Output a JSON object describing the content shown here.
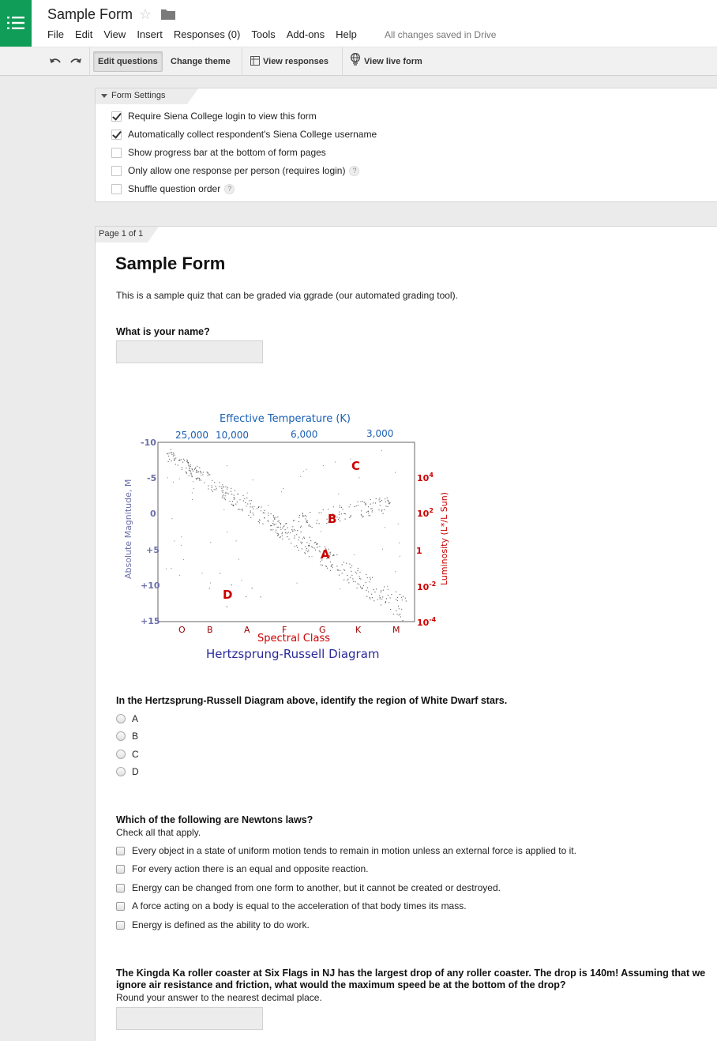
{
  "app": {
    "doc_title": "Sample Form",
    "save_status": "All changes saved in Drive",
    "menu": [
      "File",
      "Edit",
      "View",
      "Insert",
      "Responses (0)",
      "Tools",
      "Add-ons",
      "Help"
    ]
  },
  "toolbar": {
    "edit_questions": "Edit questions",
    "change_theme": "Change theme",
    "view_responses": "View responses",
    "view_live_form": "View live form"
  },
  "settings": {
    "tab_label": "Form Settings",
    "options": [
      {
        "label": "Require Siena College login to view this form",
        "checked": true
      },
      {
        "label": "Automatically collect respondent's Siena College username",
        "checked": true
      },
      {
        "label": "Show progress bar at the bottom of form pages",
        "checked": false
      },
      {
        "label": "Only allow one response per person (requires login)",
        "checked": false
      },
      {
        "label": "Shuffle question order",
        "checked": false
      }
    ],
    "help_glyph": "?"
  },
  "page": {
    "tab_label": "Page 1 of 1",
    "form_title": "Sample Form",
    "form_description": "This is a sample quiz that can be graded via ggrade (our automated grading tool).",
    "q1": {
      "title": "What is your name?"
    },
    "q2": {
      "title": "In the Hertzsprung-Russell Diagram above, identify the region of White Dwarf stars.",
      "options": [
        "A",
        "B",
        "C",
        "D"
      ]
    },
    "q3": {
      "title": "Which of the following are Newtons laws?",
      "help": "Check all that apply.",
      "options": [
        "Every object in a state of uniform motion tends to remain in motion unless an external force is applied to it.",
        "For every action there is an equal and opposite reaction.",
        "Energy can be changed from one form to another, but it cannot be created or destroyed.",
        "A force acting on a body is equal to the acceleration of that body times its mass.",
        "Energy is defined as the ability to do work."
      ]
    },
    "q4": {
      "title": "The Kingda Ka roller coaster at Six Flags in NJ has the largest drop of any roller coaster. The drop is 140m! Assuming that we ignore air resistance and friction, what would the maximum speed be at the bottom of the drop?",
      "help": "Round your answer to the nearest decimal place."
    }
  },
  "diagram": {
    "title": "Hertzsprung-Russell Diagram",
    "top_axis_label": "Effective Temperature (K)",
    "top_ticks": [
      "25,000",
      "10,000",
      "6,000",
      "3,000"
    ],
    "left_axis_label": "Absolute Magnitude, M",
    "left_ticks": [
      "-10",
      "-5",
      "0",
      "+5",
      "+10",
      "+15"
    ],
    "right_axis_label": "Luminosity (L*/L Sun)",
    "right_ticks": [
      "10",
      "10",
      "1",
      "10",
      "10"
    ],
    "right_exponents": [
      "4",
      "2",
      "",
      "-2",
      "-4"
    ],
    "bottom_axis_label": "Spectral Class",
    "bottom_ticks": [
      "O",
      "B",
      "A",
      "F",
      "G",
      "K",
      "M"
    ],
    "regions": [
      "A",
      "B",
      "C",
      "D"
    ],
    "colors": {
      "blue": "#1a5fb4",
      "red": "#cc0000",
      "grey": "#6b6fa8",
      "title": "#2b2a9a"
    }
  }
}
